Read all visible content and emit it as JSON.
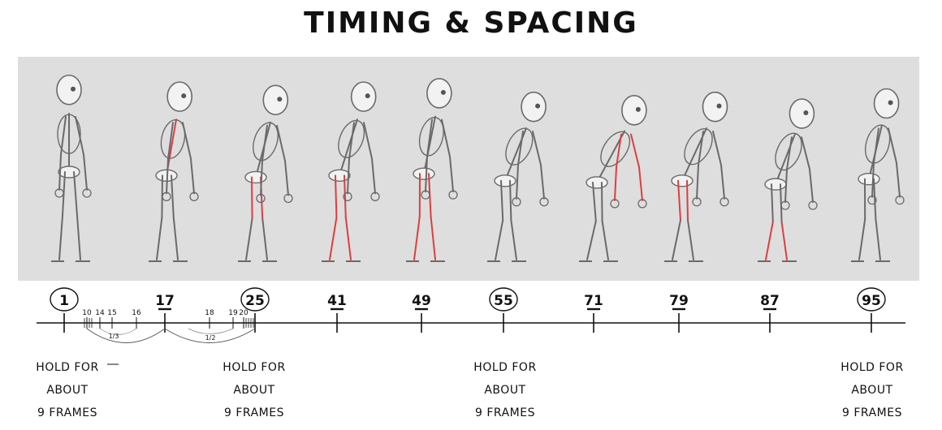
{
  "title": "TIMING & SPACING",
  "key_frames": [
    {
      "label": "1",
      "circled": true
    },
    {
      "label": "17",
      "circled": false
    },
    {
      "label": "25",
      "circled": true
    },
    {
      "label": "41",
      "circled": false
    },
    {
      "label": "49",
      "circled": false
    },
    {
      "label": "55",
      "circled": true
    },
    {
      "label": "71",
      "circled": false
    },
    {
      "label": "79",
      "circled": false
    },
    {
      "label": "87",
      "circled": false
    },
    {
      "label": "95",
      "circled": true
    }
  ],
  "inbetween_labels": [
    "10",
    "14",
    "15",
    "16",
    "18",
    "19",
    "20"
  ],
  "spacing_fractions": [
    "1/3",
    "1/2"
  ],
  "hold_notes": [
    {
      "line1": "HOLD FOR",
      "line2": "ABOUT",
      "line3": "9 FRAMES"
    },
    {
      "line1": "HOLD FOR",
      "line2": "ABOUT",
      "line3": "9 FRAMES"
    },
    {
      "line1": "HOLD FOR",
      "line2": "ABOUT",
      "line3": "9 FRAMES"
    },
    {
      "line1": "HOLD FOR",
      "line2": "ABOUT",
      "line3": "9 FRAMES"
    }
  ],
  "colors": {
    "panel_bg": "#dedede",
    "sketch_line": "#6a6a6a",
    "highlight": "#d94040",
    "ink": "#111111"
  }
}
